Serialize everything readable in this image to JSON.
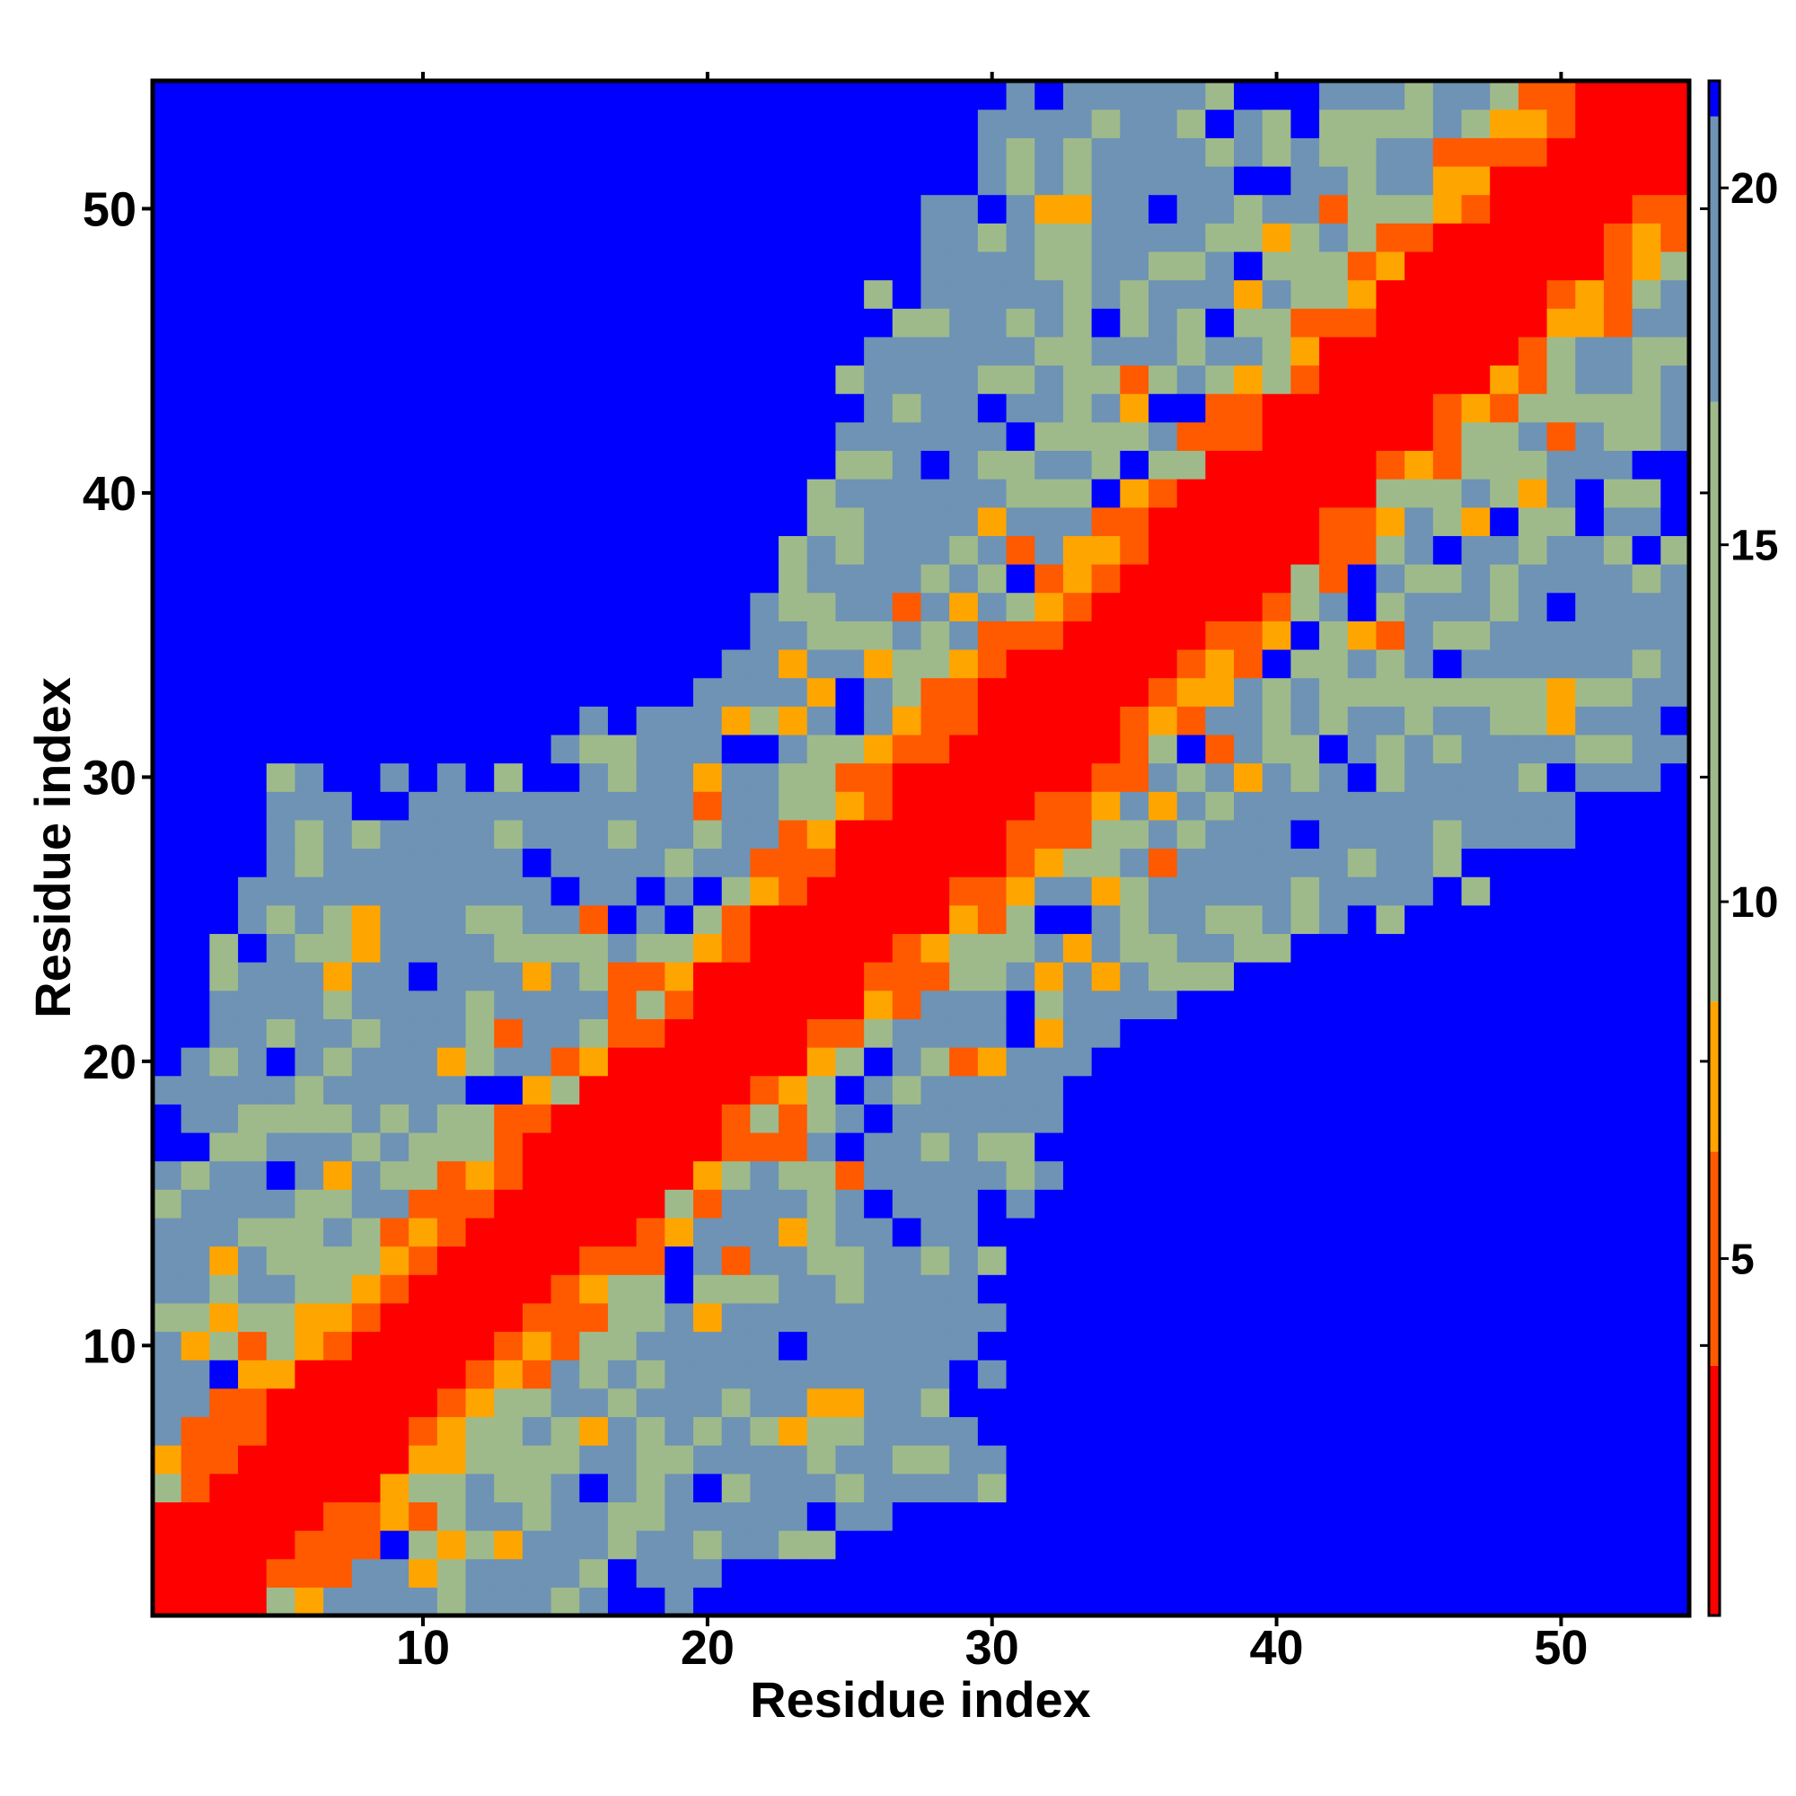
{
  "chart_data": {
    "type": "heatmap",
    "title": "",
    "xlabel": "Residue index",
    "ylabel": "Residue index",
    "n_residues": 54,
    "xlim": [
      0.5,
      54.5
    ],
    "ylim": [
      0.5,
      54.5
    ],
    "x_ticks": [
      10,
      20,
      30,
      40,
      50
    ],
    "y_ticks": [
      10,
      20,
      30,
      40,
      50
    ],
    "colorbar": {
      "ticks": [
        5,
        10,
        15,
        20
      ],
      "range": [
        0,
        21.5
      ],
      "bands": [
        {
          "from": 0,
          "to": 3.5,
          "color": "#ff0000"
        },
        {
          "from": 3.5,
          "to": 6.5,
          "color": "#ff5a00"
        },
        {
          "from": 6.5,
          "to": 8.6,
          "color": "#ffa500"
        },
        {
          "from": 8.6,
          "to": 17,
          "color": "#9fba8a"
        },
        {
          "from": 17,
          "to": 21.0,
          "color": "#6e93b4"
        },
        {
          "from": 21.0,
          "to": 21.5,
          "color": "#0000ff"
        }
      ]
    },
    "colors": {
      "contact": "#ff0000",
      "near": "#ff5a00",
      "mid": "#ffa500",
      "far_green": "#9fba8a",
      "far_blue": "#6e93b4",
      "cutoff": "#0000ff"
    },
    "notes_from_image": "symmetric residue-residue distance map; red diagonal band, orange near-diagonal contacts, grey-green/steel-blue intermediate region, solid blue beyond cutoff"
  }
}
